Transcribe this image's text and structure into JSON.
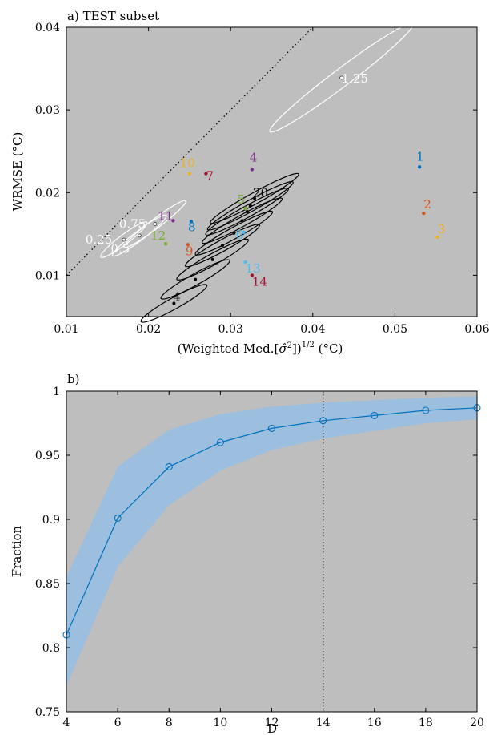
{
  "chart_data": [
    {
      "type": "scatter",
      "panel_title": "a) TEST subset",
      "xlabel": "(Weighted Med.[σ̂²])^1/2 (°C)",
      "ylabel": "WRMSE (°C)",
      "xlim": [
        0.01,
        0.06
      ],
      "ylim": [
        0.005,
        0.04
      ],
      "xticks": [
        "0.01",
        "0.02",
        "0.03",
        "0.04",
        "0.05",
        "0.06"
      ],
      "yticks": [
        "0.01",
        "0.02",
        "0.03",
        "0.04"
      ],
      "background": "#bebebe",
      "reference_line": {
        "style": "dotted",
        "slope": 1,
        "color": "#000000"
      },
      "points": [
        {
          "label": "1",
          "x": 0.053,
          "y": 0.0231,
          "color": "#0072bd"
        },
        {
          "label": "2",
          "x": 0.0535,
          "y": 0.0175,
          "color": "#d95319"
        },
        {
          "label": "3",
          "x": 0.0552,
          "y": 0.0146,
          "color": "#edb120"
        },
        {
          "label": "4",
          "x": 0.0326,
          "y": 0.0228,
          "color": "#7e2f8e"
        },
        {
          "label": "5",
          "x": 0.0318,
          "y": 0.0181,
          "color": "#77ac30"
        },
        {
          "label": "6",
          "x": 0.0316,
          "y": 0.0152,
          "color": "#4dbeee"
        },
        {
          "label": "7",
          "x": 0.027,
          "y": 0.0223,
          "color": "#a2142f"
        },
        {
          "label": "8",
          "x": 0.0252,
          "y": 0.0165,
          "color": "#0072bd"
        },
        {
          "label": "9",
          "x": 0.0248,
          "y": 0.0137,
          "color": "#d95319"
        },
        {
          "label": "10",
          "x": 0.025,
          "y": 0.0223,
          "color": "#edb120"
        },
        {
          "label": "11",
          "x": 0.023,
          "y": 0.0166,
          "color": "#7e2f8e"
        },
        {
          "label": "12",
          "x": 0.0221,
          "y": 0.0138,
          "color": "#77ac30"
        },
        {
          "label": "13",
          "x": 0.0318,
          "y": 0.0116,
          "color": "#4dbeee"
        },
        {
          "label": "14",
          "x": 0.0326,
          "y": 0.01,
          "color": "#a2142f"
        }
      ],
      "black_ellipse_series": {
        "color": "#000000",
        "labels": [
          {
            "text": "4",
            "x": 0.0231,
            "y": 0.0066
          },
          {
            "text": "20",
            "x": 0.0329,
            "y": 0.0193
          }
        ],
        "centers": [
          {
            "x": 0.0231,
            "y": 0.0066
          },
          {
            "x": 0.0257,
            "y": 0.0095
          },
          {
            "x": 0.0278,
            "y": 0.0119
          },
          {
            "x": 0.029,
            "y": 0.0136
          },
          {
            "x": 0.0304,
            "y": 0.0151
          },
          {
            "x": 0.0314,
            "y": 0.0166
          },
          {
            "x": 0.032,
            "y": 0.0177
          },
          {
            "x": 0.0324,
            "y": 0.0184
          },
          {
            "x": 0.0329,
            "y": 0.0193
          }
        ]
      },
      "white_ellipse_series": {
        "color": "#ffffff",
        "labels": [
          {
            "text": "0.25",
            "x": 0.017,
            "y": 0.0143
          },
          {
            "text": "0.5",
            "x": 0.0189,
            "y": 0.0133
          },
          {
            "text": "0.75",
            "x": 0.0208,
            "y": 0.0162
          },
          {
            "text": "1.25",
            "x": 0.0435,
            "y": 0.0339
          }
        ],
        "centers": [
          {
            "x": 0.017,
            "y": 0.0143
          },
          {
            "x": 0.0189,
            "y": 0.0148
          },
          {
            "x": 0.0208,
            "y": 0.0162
          },
          {
            "x": 0.0435,
            "y": 0.0339
          }
        ]
      }
    },
    {
      "type": "line",
      "panel_title": "b)",
      "xlabel": "D",
      "ylabel": "Fraction",
      "xlim": [
        4,
        20
      ],
      "ylim": [
        0.75,
        1.0
      ],
      "xticks": [
        "4",
        "6",
        "8",
        "10",
        "12",
        "14",
        "16",
        "18",
        "20"
      ],
      "yticks": [
        "0.75",
        "0.8",
        "0.85",
        "0.9",
        "0.95",
        "1"
      ],
      "background": "#bebebe",
      "vertical_line": {
        "x": 14,
        "style": "dotted",
        "color": "#000000"
      },
      "series": [
        {
          "color": "#0072bd",
          "band_color": "#9cbfdf",
          "x": [
            4,
            6,
            8,
            10,
            12,
            14,
            16,
            18,
            20
          ],
          "y": [
            0.81,
            0.901,
            0.941,
            0.96,
            0.971,
            0.977,
            0.981,
            0.985,
            0.987
          ],
          "lower": [
            0.77,
            0.863,
            0.911,
            0.938,
            0.954,
            0.963,
            0.969,
            0.975,
            0.978
          ],
          "upper": [
            0.855,
            0.941,
            0.97,
            0.982,
            0.988,
            0.991,
            0.993,
            0.995,
            0.996
          ]
        }
      ]
    }
  ]
}
